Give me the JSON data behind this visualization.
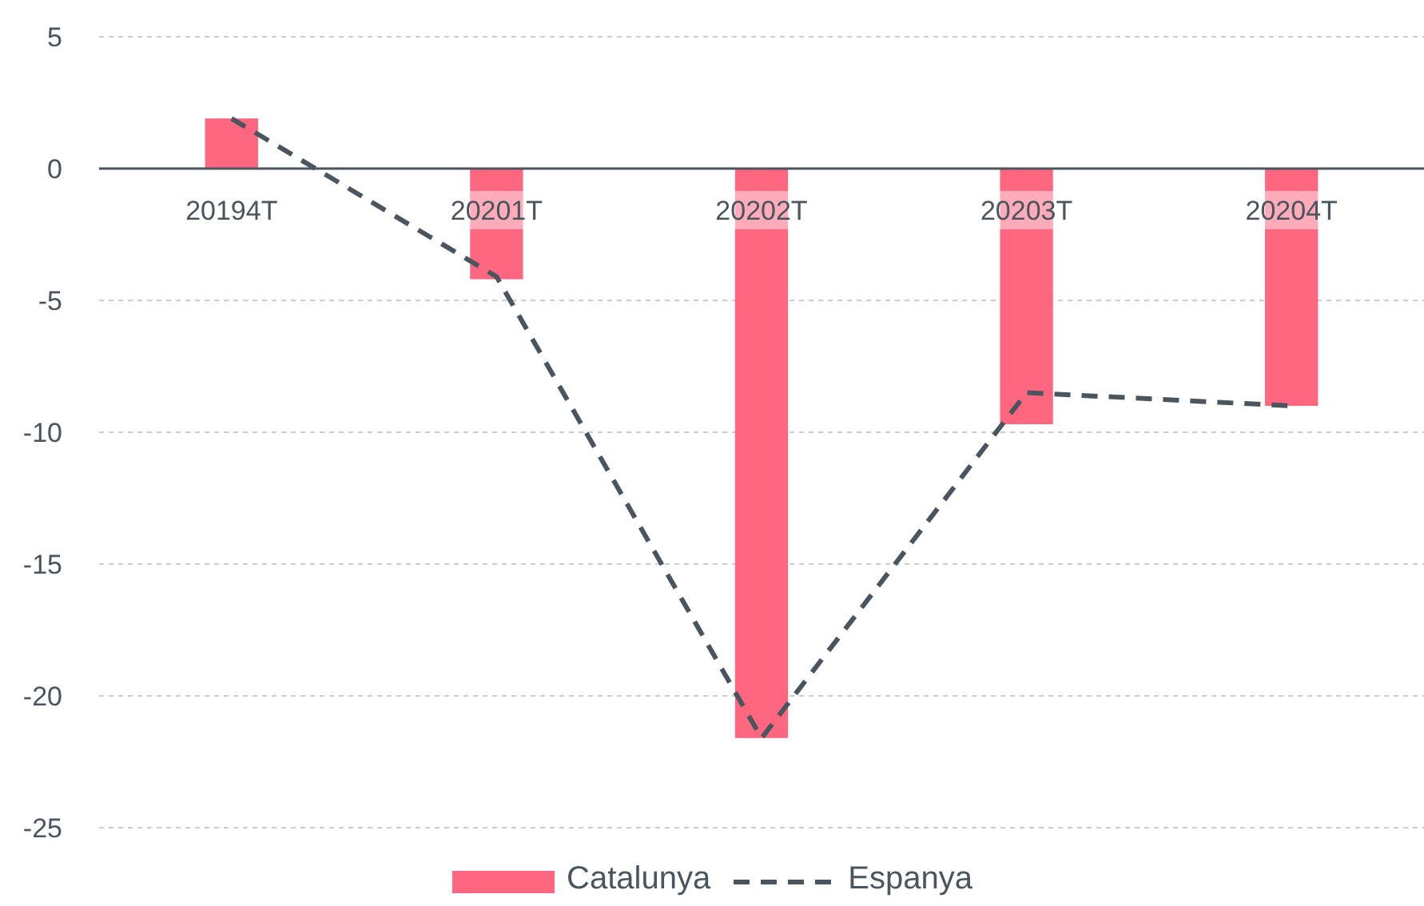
{
  "chart_data": {
    "type": "bar",
    "categories": [
      "20194T",
      "20201T",
      "20202T",
      "20203T",
      "20204T"
    ],
    "series": [
      {
        "name": "Catalunya",
        "color": "#ff6680",
        "values": [
          1.9,
          -4.2,
          -21.6,
          -9.7,
          -9.0
        ]
      },
      {
        "name": "Espanya",
        "type": "line",
        "color": "#4a555f",
        "line_style": "dashed",
        "marker": "none",
        "values": [
          1.9,
          -4.1,
          -21.6,
          -8.5,
          -9.0
        ]
      }
    ],
    "ylim": [
      -25,
      5
    ],
    "yticks": [
      -25,
      -20,
      -15,
      -10,
      -5,
      0,
      5
    ],
    "grid": "y",
    "legend": "bottom"
  }
}
